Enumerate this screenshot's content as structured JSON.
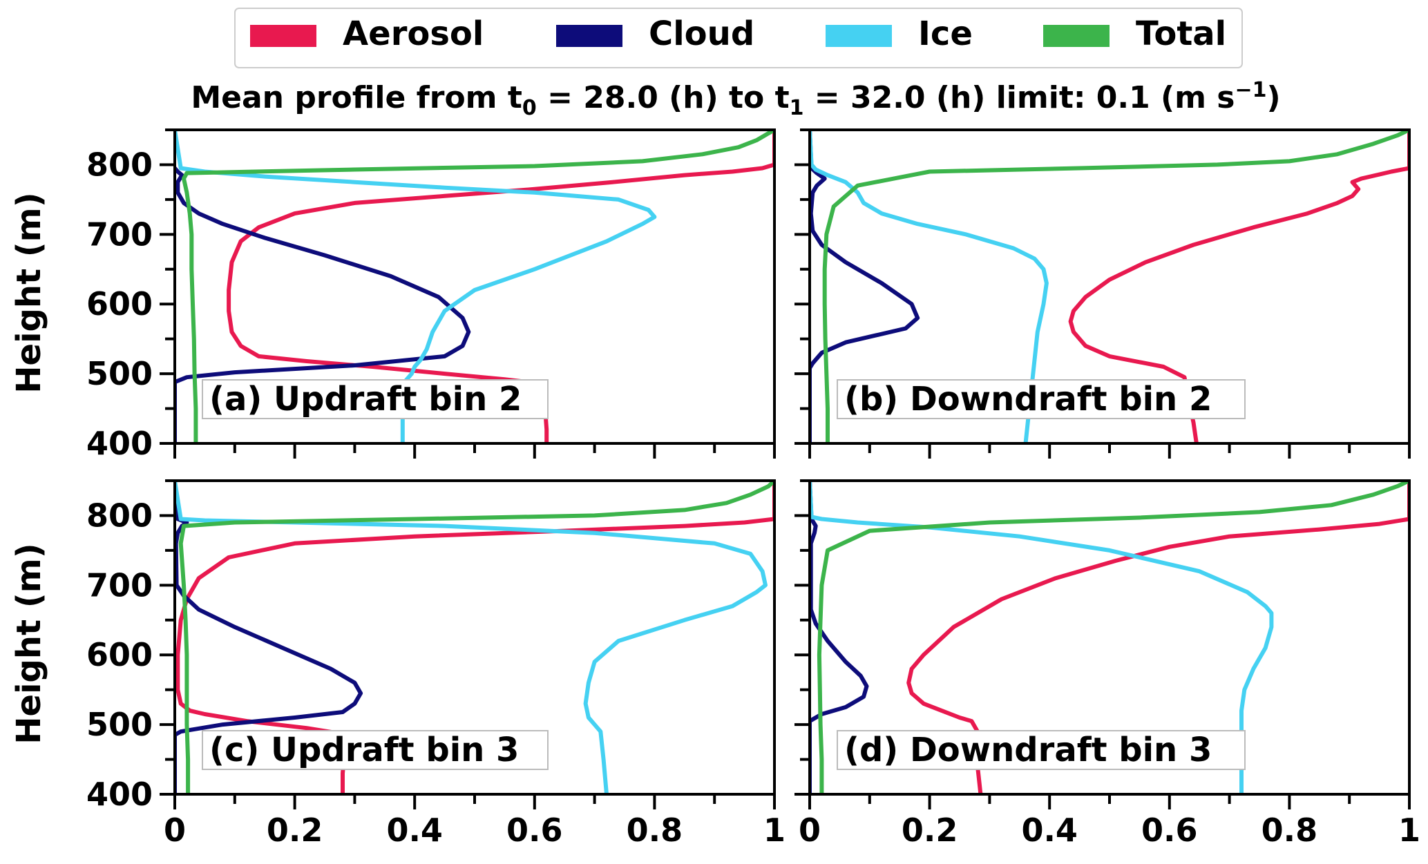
{
  "figure": {
    "title_parts": {
      "prefix": "Mean profile from t",
      "sub0": "0",
      "mid": " = 28.0 (h) to t",
      "sub1": "1",
      "suffix": " = 32.0 (h) limit: 0.1 (m s",
      "sup": "−1",
      "end": ")"
    },
    "ylabel": "Height (m)",
    "legend": [
      {
        "name": "Aerosol",
        "color": "#e8194f"
      },
      {
        "name": "Cloud",
        "color": "#0d0c7a"
      },
      {
        "name": "Ice",
        "color": "#45d1f2"
      },
      {
        "name": "Total",
        "color": "#3cb44b"
      }
    ]
  },
  "chart_data": [
    {
      "type": "line",
      "label": "(a) Updraft bin 2",
      "ylabel": "Height (m)",
      "ylim": [
        400,
        850
      ],
      "xlim": [
        0,
        1
      ],
      "yticks": [
        400,
        500,
        600,
        700,
        800
      ],
      "xticks": [],
      "series": [
        {
          "name": "Aerosol",
          "x": [
            0.62,
            0.62,
            0.615,
            0.59,
            0.55,
            0.45,
            0.33,
            0.22,
            0.14,
            0.11,
            0.095,
            0.09,
            0.09,
            0.095,
            0.11,
            0.14,
            0.2,
            0.3,
            0.45,
            0.6,
            0.73,
            0.85,
            0.93,
            0.98,
            1.0,
            1.0
          ],
          "y": [
            400,
            420,
            480,
            488,
            492,
            500,
            510,
            518,
            525,
            540,
            560,
            590,
            620,
            660,
            690,
            710,
            730,
            745,
            755,
            765,
            775,
            785,
            790,
            795,
            800,
            850
          ]
        },
        {
          "name": "Cloud",
          "x": [
            0,
            0,
            0.0,
            0.02,
            0.1,
            0.3,
            0.45,
            0.48,
            0.49,
            0.48,
            0.44,
            0.36,
            0.25,
            0.15,
            0.08,
            0.04,
            0.015,
            0.005,
            0.005,
            0.012,
            0.005,
            0
          ],
          "y": [
            400,
            480,
            488,
            495,
            502,
            512,
            525,
            540,
            560,
            580,
            610,
            640,
            670,
            695,
            715,
            730,
            745,
            760,
            775,
            785,
            790,
            795
          ]
        },
        {
          "name": "Ice",
          "x": [
            0.38,
            0.38,
            0.385,
            0.395,
            0.4,
            0.41,
            0.42,
            0.43,
            0.45,
            0.5,
            0.6,
            0.72,
            0.78,
            0.8,
            0.79,
            0.74,
            0.6,
            0.45,
            0.3,
            0.15,
            0.05,
            0.01,
            0
          ],
          "y": [
            400,
            480,
            490,
            500,
            510,
            520,
            535,
            560,
            590,
            620,
            650,
            690,
            715,
            725,
            735,
            750,
            760,
            767,
            775,
            783,
            790,
            795,
            850
          ]
        },
        {
          "name": "Total",
          "x": [
            0.035,
            0.035,
            0.033,
            0.032,
            0.03,
            0.028,
            0.028,
            0.025,
            0.02,
            0.015,
            0.02,
            0.3,
            0.6,
            0.78,
            0.88,
            0.94,
            0.97,
            0.99,
            1.0
          ],
          "y": [
            400,
            450,
            500,
            550,
            600,
            650,
            700,
            730,
            760,
            780,
            788,
            793,
            798,
            805,
            815,
            825,
            835,
            845,
            850
          ]
        }
      ]
    },
    {
      "type": "line",
      "label": "(b) Downdraft bin 2",
      "ylabel": "",
      "ylim": [
        400,
        850
      ],
      "xlim": [
        0,
        1
      ],
      "yticks": [
        400,
        500,
        600,
        700,
        800
      ],
      "xticks": [],
      "series": [
        {
          "name": "Aerosol",
          "x": [
            0.645,
            0.64,
            0.63,
            0.625,
            0.59,
            0.5,
            0.46,
            0.44,
            0.435,
            0.44,
            0.46,
            0.5,
            0.56,
            0.64,
            0.74,
            0.83,
            0.88,
            0.905,
            0.915,
            0.905,
            0.92,
            0.97,
            1.0,
            1.0
          ],
          "y": [
            400,
            430,
            470,
            495,
            510,
            525,
            540,
            560,
            575,
            590,
            610,
            635,
            660,
            685,
            710,
            730,
            745,
            755,
            765,
            775,
            780,
            790,
            795,
            850
          ]
        },
        {
          "name": "Cloud",
          "x": [
            0,
            0,
            0.0,
            0.005,
            0.02,
            0.06,
            0.11,
            0.16,
            0.18,
            0.17,
            0.12,
            0.06,
            0.02,
            0.005,
            0.002,
            0.005,
            0.012,
            0.025,
            0.012,
            0.003,
            0
          ],
          "y": [
            400,
            500,
            508,
            515,
            530,
            545,
            555,
            565,
            580,
            600,
            630,
            660,
            685,
            705,
            730,
            760,
            770,
            780,
            788,
            795,
            850
          ]
        },
        {
          "name": "Ice",
          "x": [
            0.36,
            0.365,
            0.37,
            0.375,
            0.38,
            0.39,
            0.395,
            0.39,
            0.375,
            0.34,
            0.26,
            0.18,
            0.12,
            0.09,
            0.08,
            0.06,
            0.03,
            0.01,
            0.003,
            0
          ],
          "y": [
            400,
            440,
            480,
            520,
            560,
            600,
            630,
            650,
            665,
            680,
            700,
            715,
            730,
            745,
            760,
            775,
            785,
            793,
            800,
            850
          ]
        },
        {
          "name": "Total",
          "x": [
            0.03,
            0.03,
            0.028,
            0.026,
            0.025,
            0.025,
            0.028,
            0.04,
            0.08,
            0.2,
            0.45,
            0.68,
            0.8,
            0.88,
            0.94,
            0.98,
            1.0
          ],
          "y": [
            400,
            450,
            500,
            550,
            600,
            650,
            700,
            740,
            770,
            790,
            795,
            800,
            805,
            815,
            830,
            842,
            850
          ]
        }
      ]
    },
    {
      "type": "line",
      "label": "(c) Updraft bin 3",
      "ylabel": "Height (m)",
      "ylim": [
        400,
        850
      ],
      "xlim": [
        0,
        1
      ],
      "yticks": [
        400,
        500,
        600,
        700,
        800
      ],
      "xticks": [
        "0",
        "0.2",
        "0.4",
        "0.6",
        "0.8",
        "1"
      ],
      "series": [
        {
          "name": "Aerosol",
          "x": [
            0.28,
            0.28,
            0.285,
            0.27,
            0.22,
            0.12,
            0.05,
            0.025,
            0.01,
            0.005,
            0.005,
            0.01,
            0.02,
            0.04,
            0.09,
            0.2,
            0.4,
            0.65,
            0.85,
            0.95,
            1.0,
            1.0
          ],
          "y": [
            400,
            430,
            480,
            488,
            495,
            505,
            515,
            520,
            530,
            550,
            600,
            650,
            680,
            710,
            740,
            760,
            770,
            778,
            785,
            790,
            795,
            850
          ]
        },
        {
          "name": "Cloud",
          "x": [
            0,
            0.0,
            0.01,
            0.08,
            0.2,
            0.28,
            0.3,
            0.31,
            0.3,
            0.26,
            0.18,
            0.1,
            0.04,
            0.015,
            0.003,
            0.002,
            0.005,
            0.012,
            0.02,
            0.005,
            0
          ],
          "y": [
            400,
            485,
            490,
            500,
            510,
            518,
            530,
            545,
            560,
            580,
            610,
            640,
            665,
            685,
            700,
            760,
            775,
            785,
            790,
            795,
            850
          ]
        },
        {
          "name": "Ice",
          "x": [
            0.72,
            0.715,
            0.71,
            0.7,
            0.69,
            0.685,
            0.69,
            0.7,
            0.74,
            0.85,
            0.93,
            0.97,
            0.985,
            0.98,
            0.96,
            0.9,
            0.7,
            0.45,
            0.2,
            0.05,
            0.01,
            0
          ],
          "y": [
            400,
            450,
            490,
            500,
            510,
            530,
            560,
            590,
            620,
            650,
            670,
            690,
            700,
            720,
            745,
            760,
            775,
            785,
            790,
            793,
            795,
            850
          ]
        },
        {
          "name": "Total",
          "x": [
            0.022,
            0.022,
            0.02,
            0.02,
            0.02,
            0.018,
            0.015,
            0.01,
            0.015,
            0.1,
            0.4,
            0.7,
            0.85,
            0.92,
            0.96,
            0.99,
            1.0
          ],
          "y": [
            400,
            450,
            500,
            550,
            600,
            650,
            700,
            760,
            785,
            790,
            795,
            800,
            808,
            818,
            830,
            842,
            850
          ]
        }
      ]
    },
    {
      "type": "line",
      "label": "(d) Downdraft bin 3",
      "ylabel": "",
      "ylim": [
        400,
        850
      ],
      "xlim": [
        0,
        1
      ],
      "yticks": [
        400,
        500,
        600,
        700,
        800
      ],
      "xticks": [
        "0",
        "0.2",
        "0.4",
        "0.6",
        "0.8",
        "1"
      ],
      "series": [
        {
          "name": "Aerosol",
          "x": [
            0.285,
            0.28,
            0.28,
            0.27,
            0.25,
            0.22,
            0.19,
            0.17,
            0.165,
            0.17,
            0.19,
            0.24,
            0.32,
            0.41,
            0.51,
            0.6,
            0.7,
            0.85,
            0.95,
            1.0,
            1.0
          ],
          "y": [
            400,
            440,
            490,
            505,
            510,
            520,
            530,
            545,
            560,
            580,
            600,
            640,
            680,
            710,
            735,
            755,
            770,
            780,
            788,
            795,
            850
          ]
        },
        {
          "name": "Cloud",
          "x": [
            0,
            0,
            0.0,
            0.02,
            0.06,
            0.09,
            0.095,
            0.085,
            0.06,
            0.03,
            0.01,
            0.002,
            0.002,
            0.008,
            0.01,
            0.003,
            0
          ],
          "y": [
            400,
            500,
            505,
            515,
            525,
            540,
            555,
            570,
            590,
            620,
            645,
            665,
            760,
            775,
            785,
            795,
            850
          ]
        },
        {
          "name": "Ice",
          "x": [
            0.72,
            0.72,
            0.72,
            0.72,
            0.725,
            0.74,
            0.76,
            0.77,
            0.77,
            0.76,
            0.73,
            0.65,
            0.5,
            0.35,
            0.2,
            0.08,
            0.02,
            0.003,
            0
          ],
          "y": [
            400,
            440,
            480,
            520,
            550,
            580,
            610,
            640,
            660,
            670,
            690,
            720,
            750,
            770,
            783,
            790,
            795,
            798,
            850
          ]
        },
        {
          "name": "Total",
          "x": [
            0.02,
            0.02,
            0.018,
            0.017,
            0.016,
            0.018,
            0.02,
            0.03,
            0.1,
            0.3,
            0.55,
            0.75,
            0.87,
            0.94,
            0.98,
            1.0
          ],
          "y": [
            400,
            450,
            500,
            550,
            600,
            650,
            700,
            750,
            778,
            790,
            797,
            805,
            815,
            830,
            842,
            850
          ]
        }
      ]
    }
  ]
}
